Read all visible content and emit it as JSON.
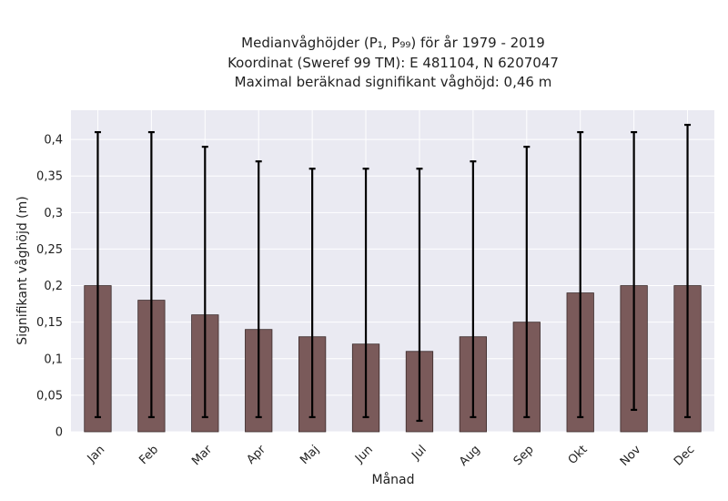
{
  "chart_data": {
    "type": "bar",
    "title_lines": [
      "Medianvåghöjder (P₁, P₉₉) för år 1979 - 2019",
      "Koordinat (Sweref 99 TM): E 481104, N 6207047",
      "Maximal beräknad signifikant våghöjd: 0,46 m"
    ],
    "xlabel": "Månad",
    "ylabel": "Signifikant våghöjd (m)",
    "categories": [
      "Jan",
      "Feb",
      "Mar",
      "Apr",
      "Maj",
      "Jun",
      "Jul",
      "Aug",
      "Sep",
      "Okt",
      "Nov",
      "Dec"
    ],
    "series": [
      {
        "values": [
          0.2,
          0.18,
          0.16,
          0.14,
          0.13,
          0.12,
          0.11,
          0.13,
          0.15,
          0.19,
          0.2,
          0.2
        ],
        "p1": [
          0.02,
          0.02,
          0.02,
          0.02,
          0.02,
          0.02,
          0.015,
          0.02,
          0.02,
          0.02,
          0.03,
          0.02
        ],
        "p99": [
          0.41,
          0.41,
          0.39,
          0.37,
          0.36,
          0.36,
          0.36,
          0.37,
          0.39,
          0.41,
          0.41,
          0.42
        ]
      }
    ],
    "ylim": [
      0,
      0.44
    ],
    "yticks": [
      0,
      0.05,
      0.1,
      0.15,
      0.2,
      0.25,
      0.3,
      0.35,
      0.4
    ],
    "ytick_labels": [
      "0",
      "0,05",
      "0,1",
      "0,15",
      "0,2",
      "0,25",
      "0,3",
      "0,35",
      "0,4"
    ],
    "grid": true,
    "colors": {
      "bar": "#7a5a5a",
      "bar_edge": "#3a2a2a",
      "error": "#000000",
      "plot_bg": "#eaeaf2",
      "grid": "#ffffff"
    }
  }
}
